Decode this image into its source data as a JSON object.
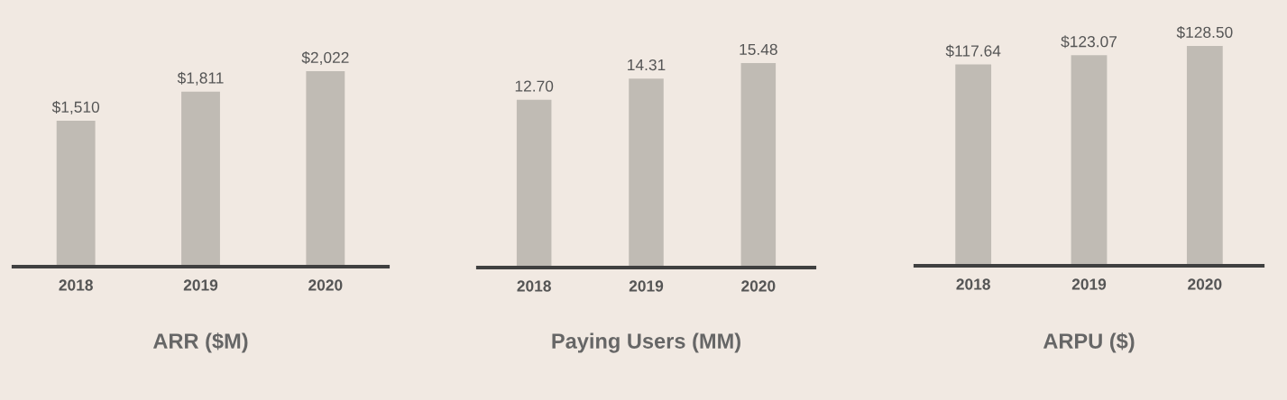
{
  "chart_data": [
    {
      "type": "bar",
      "title": "ARR ($M)",
      "categories": [
        "2018",
        "2019",
        "2020"
      ],
      "values": [
        1510,
        1811,
        2022
      ],
      "value_labels": [
        "$1,510",
        "$1,811",
        "$2,022"
      ],
      "color": "#c0bbb4",
      "tick_labels": "x",
      "grid": false
    },
    {
      "type": "bar",
      "title": "Paying Users (MM)",
      "categories": [
        "2018",
        "2019",
        "2020"
      ],
      "values": [
        12.7,
        14.31,
        15.48
      ],
      "value_labels": [
        "12.70",
        "14.31",
        "15.48"
      ],
      "color": "#c0bbb4",
      "tick_labels": "x",
      "grid": false
    },
    {
      "type": "bar",
      "title": "ARPU ($)",
      "categories": [
        "2018",
        "2019",
        "2020"
      ],
      "values": [
        117.64,
        123.07,
        128.5
      ],
      "value_labels": [
        "$117.64",
        "$123.07",
        "$128.50"
      ],
      "color": "#c0bbb4",
      "tick_labels": "x",
      "grid": false
    }
  ]
}
